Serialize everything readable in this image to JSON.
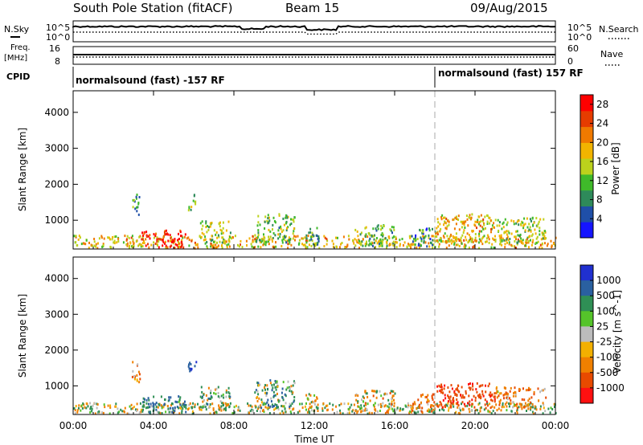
{
  "header": {
    "station": "South Pole Station (fitACF)",
    "beam": "Beam 15",
    "date": "09/Aug/2015"
  },
  "top_panels": {
    "nsky_label": "N.Sky",
    "nsearch_label": "N.Search",
    "noise_ticks": [
      "10^5",
      "10^0"
    ],
    "freq_label": "Freq.",
    "freq_unit": "[MHz]",
    "freq_ticks": [
      "16",
      "8"
    ],
    "nave_label": "Nave",
    "nave_ticks": [
      "60",
      "0"
    ],
    "cpid_label": "CPID",
    "cpid_segments": [
      {
        "label": "normalsound (fast) -157 RF",
        "start_hour": 0
      },
      {
        "label": "normalsound (fast) 157 RF",
        "start_hour": 18
      }
    ]
  },
  "colors": {
    "power_scale": [
      "#1515ff",
      "#1f4fa8",
      "#2e8a5a",
      "#3fba2a",
      "#bcd21c",
      "#f2b400",
      "#f07a00",
      "#e63c00",
      "#ff0000"
    ],
    "velocity_scale": [
      "#2030d0",
      "#2a60a0",
      "#2f8f55",
      "#55c42a",
      "#bcbcbc",
      "#f3b000",
      "#f08000",
      "#e84a00",
      "#ff1010"
    ]
  },
  "chart_data": [
    {
      "type": "heatmap",
      "name": "power",
      "xlabel": "",
      "ylabel": "Slant Range [km]",
      "xlim": [
        0,
        24
      ],
      "ylim": [
        200,
        4600
      ],
      "x_ticks": [
        "00:00",
        "04:00",
        "08:00",
        "12:00",
        "16:00",
        "20:00",
        "00:00"
      ],
      "y_ticks": [
        1000,
        2000,
        3000,
        4000
      ],
      "colorbar": {
        "label": "Power [dB]",
        "ticks": [
          4,
          8,
          12,
          16,
          20,
          24,
          28
        ],
        "range": [
          0,
          30
        ]
      },
      "marker_line_hour": 18,
      "echo_regions": [
        {
          "x": [
            0.0,
            24.0
          ],
          "y": [
            250,
            600
          ],
          "value": 18
        },
        {
          "x": [
            3.4,
            5.6
          ],
          "y": [
            250,
            750
          ],
          "value": 28
        },
        {
          "x": [
            2.9,
            3.3
          ],
          "y": [
            1100,
            1750
          ],
          "value": 10
        },
        {
          "x": [
            5.7,
            6.1
          ],
          "y": [
            1300,
            1750
          ],
          "value": 12
        },
        {
          "x": [
            6.3,
            7.8
          ],
          "y": [
            400,
            1000
          ],
          "value": 14
        },
        {
          "x": [
            9.0,
            11.0
          ],
          "y": [
            400,
            1200
          ],
          "value": 12
        },
        {
          "x": [
            11.5,
            12.2
          ],
          "y": [
            300,
            900
          ],
          "value": 10
        },
        {
          "x": [
            14.0,
            16.0
          ],
          "y": [
            300,
            900
          ],
          "value": 12
        },
        {
          "x": [
            16.8,
            18.0
          ],
          "y": [
            300,
            800
          ],
          "value": 8
        },
        {
          "x": [
            18.0,
            21.0
          ],
          "y": [
            400,
            1200
          ],
          "value": 18
        },
        {
          "x": [
            21.0,
            23.5
          ],
          "y": [
            400,
            1100
          ],
          "value": 14
        }
      ]
    },
    {
      "type": "heatmap",
      "name": "velocity",
      "xlabel": "Time UT",
      "ylabel": "Slant Range [km]",
      "xlim": [
        0,
        24
      ],
      "ylim": [
        200,
        4600
      ],
      "x_ticks": [
        "00:00",
        "04:00",
        "08:00",
        "12:00",
        "16:00",
        "20:00",
        "00:00"
      ],
      "y_ticks": [
        1000,
        2000,
        3000,
        4000
      ],
      "colorbar": {
        "label": "Velocity [m s^-1]",
        "ticks": [
          "1000",
          "500",
          "100",
          "25",
          "-25",
          "-100",
          "-500",
          "-1000"
        ]
      },
      "marker_line_hour": 18,
      "echo_regions": [
        {
          "x": [
            0.0,
            24.0
          ],
          "y": [
            250,
            550
          ],
          "value": 0
        },
        {
          "x": [
            3.4,
            5.6
          ],
          "y": [
            250,
            750
          ],
          "value": 300
        },
        {
          "x": [
            2.9,
            3.3
          ],
          "y": [
            1100,
            1750
          ],
          "value": -200
        },
        {
          "x": [
            5.7,
            6.1
          ],
          "y": [
            1300,
            1750
          ],
          "value": 600
        },
        {
          "x": [
            6.3,
            7.8
          ],
          "y": [
            400,
            1000
          ],
          "value": 100
        },
        {
          "x": [
            9.0,
            11.0
          ],
          "y": [
            400,
            1200
          ],
          "value": 150
        },
        {
          "x": [
            11.5,
            12.2
          ],
          "y": [
            300,
            900
          ],
          "value": -100
        },
        {
          "x": [
            14.0,
            16.0
          ],
          "y": [
            300,
            900
          ],
          "value": -80
        },
        {
          "x": [
            16.8,
            18.0
          ],
          "y": [
            300,
            800
          ],
          "value": -300
        },
        {
          "x": [
            18.0,
            21.0
          ],
          "y": [
            400,
            1100
          ],
          "value": -600
        },
        {
          "x": [
            21.0,
            23.5
          ],
          "y": [
            400,
            1000
          ],
          "value": -200
        }
      ]
    }
  ]
}
